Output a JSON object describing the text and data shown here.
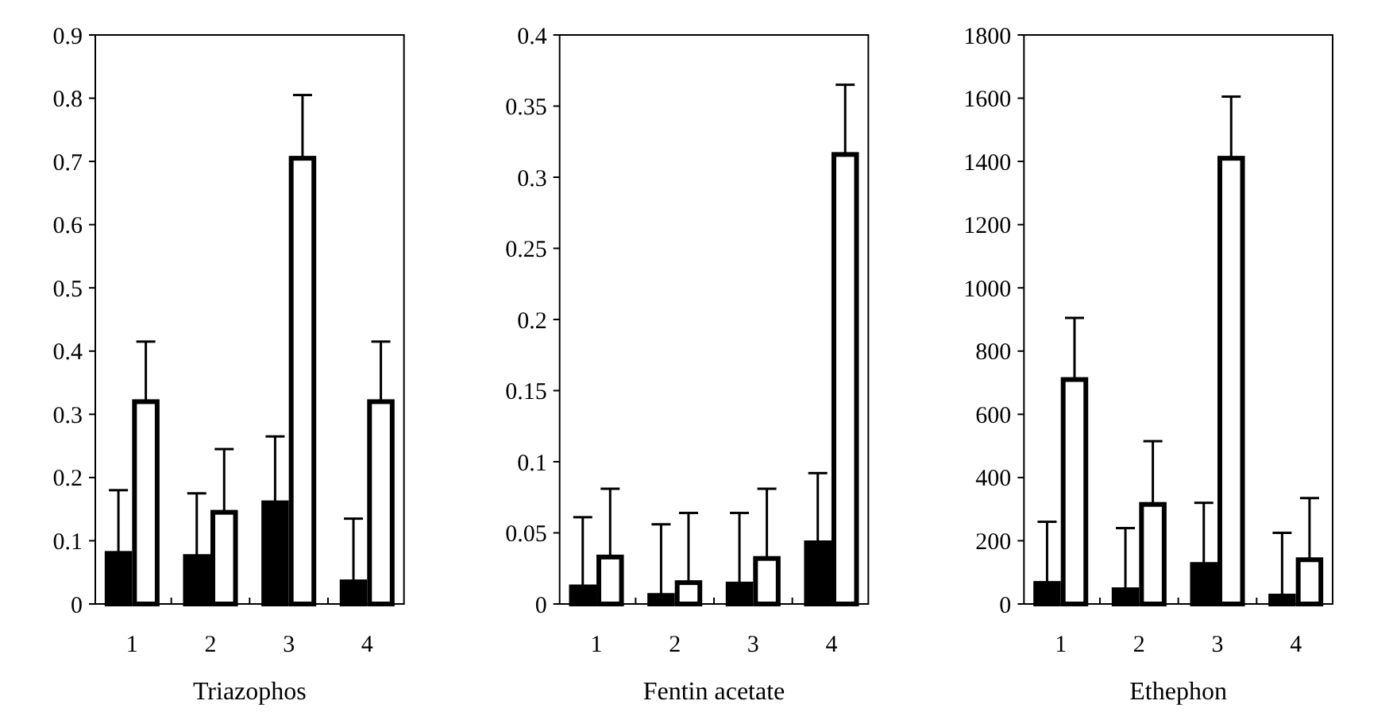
{
  "chart_data": [
    {
      "type": "bar",
      "xlabel": "Triazophos",
      "categories": [
        "1",
        "2",
        "3",
        "4"
      ],
      "ylim": [
        0,
        0.9
      ],
      "yticks": [
        0,
        0.1,
        0.2,
        0.3,
        0.4,
        0.5,
        0.6,
        0.7,
        0.8,
        0.9
      ],
      "series": [
        {
          "color": "#000000",
          "values": [
            0.08,
            0.075,
            0.16,
            0.035
          ],
          "errors": [
            [
              0.08,
              0.18
            ],
            [
              0.075,
              0.175
            ],
            [
              0.16,
              0.265
            ],
            [
              0.035,
              0.135
            ]
          ]
        },
        {
          "color": "#ffffff",
          "values": [
            0.32,
            0.145,
            0.705,
            0.32
          ],
          "errors": [
            [
              0.32,
              0.415
            ],
            [
              0.145,
              0.245
            ],
            [
              0.705,
              0.805
            ],
            [
              0.32,
              0.415
            ]
          ]
        }
      ]
    },
    {
      "type": "bar",
      "xlabel": "Fentin acetate",
      "categories": [
        "1",
        "2",
        "3",
        "4"
      ],
      "ylim": [
        0,
        0.4
      ],
      "yticks": [
        0,
        0.05,
        0.1,
        0.15,
        0.2,
        0.25,
        0.3,
        0.35,
        0.4
      ],
      "series": [
        {
          "color": "#000000",
          "values": [
            0.012,
            0.006,
            0.014,
            0.043
          ],
          "errors": [
            [
              0.012,
              0.061
            ],
            [
              0.006,
              0.056
            ],
            [
              0.014,
              0.064
            ],
            [
              0.043,
              0.092
            ]
          ]
        },
        {
          "color": "#ffffff",
          "values": [
            0.033,
            0.015,
            0.032,
            0.316
          ],
          "errors": [
            [
              0.033,
              0.081
            ],
            [
              0.015,
              0.064
            ],
            [
              0.032,
              0.081
            ],
            [
              0.316,
              0.365
            ]
          ]
        }
      ]
    },
    {
      "type": "bar",
      "xlabel": "Ethephon",
      "categories": [
        "1",
        "2",
        "3",
        "4"
      ],
      "ylim": [
        0,
        1800
      ],
      "yticks": [
        0,
        200,
        400,
        600,
        800,
        1000,
        1200,
        1400,
        1600,
        1800
      ],
      "series": [
        {
          "color": "#000000",
          "values": [
            65,
            45,
            125,
            25
          ],
          "errors": [
            [
              65,
              260
            ],
            [
              45,
              240
            ],
            [
              125,
              320
            ],
            [
              25,
              225
            ]
          ]
        },
        {
          "color": "#ffffff",
          "values": [
            710,
            315,
            1410,
            140
          ],
          "errors": [
            [
              710,
              905
            ],
            [
              315,
              515
            ],
            [
              1410,
              1605
            ],
            [
              140,
              335
            ]
          ]
        }
      ]
    }
  ]
}
